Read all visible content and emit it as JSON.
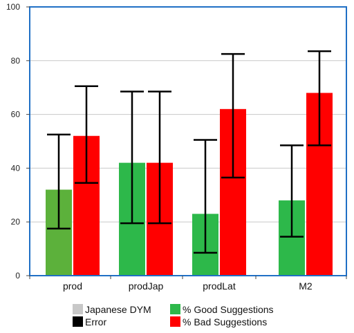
{
  "chart_data": {
    "type": "bar",
    "categories": [
      "prod",
      "prodJap",
      "prodLat",
      "M2"
    ],
    "series": [
      {
        "name": "% Good Suggestions",
        "values": [
          32,
          42,
          23,
          28
        ],
        "error_low": [
          17.5,
          19.5,
          8.5,
          14.5
        ],
        "error_high": [
          52.5,
          68.5,
          50.5,
          48.5
        ],
        "colors": [
          "#5cb13b",
          "#2db84a",
          "#2db84a",
          "#2db84a"
        ]
      },
      {
        "name": "% Bad Suggestions",
        "values": [
          52,
          42,
          62,
          68
        ],
        "error_low": [
          34.5,
          19.5,
          36.5,
          48.5
        ],
        "error_high": [
          70.5,
          68.5,
          82.5,
          83.5
        ],
        "color": "#ff0000"
      }
    ],
    "ylim": [
      0,
      100
    ],
    "yticks": [
      "0",
      "20",
      "40",
      "60",
      "80",
      "100"
    ],
    "ytick_values": [
      0,
      20,
      40,
      60,
      80,
      100
    ],
    "grid": true,
    "legend": {
      "placement": "bottom",
      "items": [
        {
          "label": "Japanese DYM",
          "color": "#c8c8c8"
        },
        {
          "label": "% Good Suggestions",
          "color": "#2db84a"
        },
        {
          "label": "Error",
          "color": "#000000"
        },
        {
          "label": "% Bad Suggestions",
          "color": "#ff0000"
        }
      ]
    },
    "colors": {
      "frame": "#1f6fc5",
      "grid": "#c8c8c8",
      "error_bar": "#000000"
    }
  }
}
